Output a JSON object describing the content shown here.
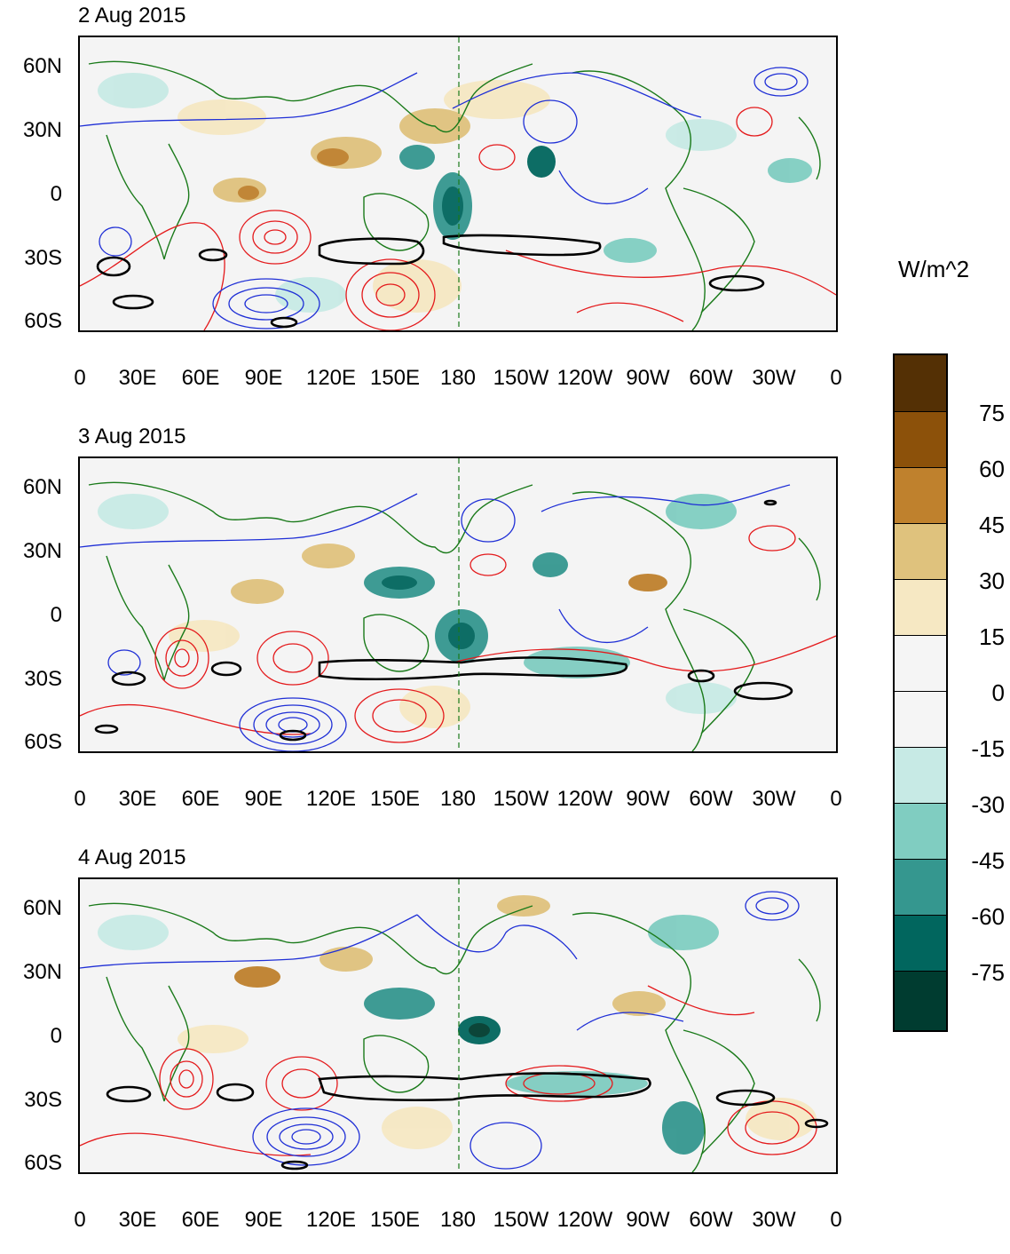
{
  "panels": [
    {
      "title": "2 Aug 2015"
    },
    {
      "title": "3 Aug 2015"
    },
    {
      "title": "4 Aug 2015"
    }
  ],
  "lat_ticks": [
    "60N",
    "30N",
    "0",
    "30S",
    "60S"
  ],
  "lon_ticks": [
    "0",
    "30E",
    "60E",
    "90E",
    "120E",
    "150E",
    "180",
    "150W",
    "120W",
    "90W",
    "60W",
    "30W",
    "0"
  ],
  "colorbar": {
    "title": "W/m^2",
    "labels": [
      "75",
      "60",
      "45",
      "30",
      "15",
      "0",
      "-15",
      "-30",
      "-45",
      "-60",
      "-75"
    ],
    "colors": [
      "#543005",
      "#8c510a",
      "#bf812d",
      "#dfc27d",
      "#f6e8c3",
      "#f5f5f5",
      "#f5f5f5",
      "#c7eae5",
      "#80cdc1",
      "#35978f",
      "#01665e",
      "#003c30"
    ]
  },
  "colors": {
    "positive_contour": "#e41a1c",
    "negative_contour": "#1f2fd6",
    "coastline": "#1a7a1a",
    "bold_contour": "#000000"
  }
}
